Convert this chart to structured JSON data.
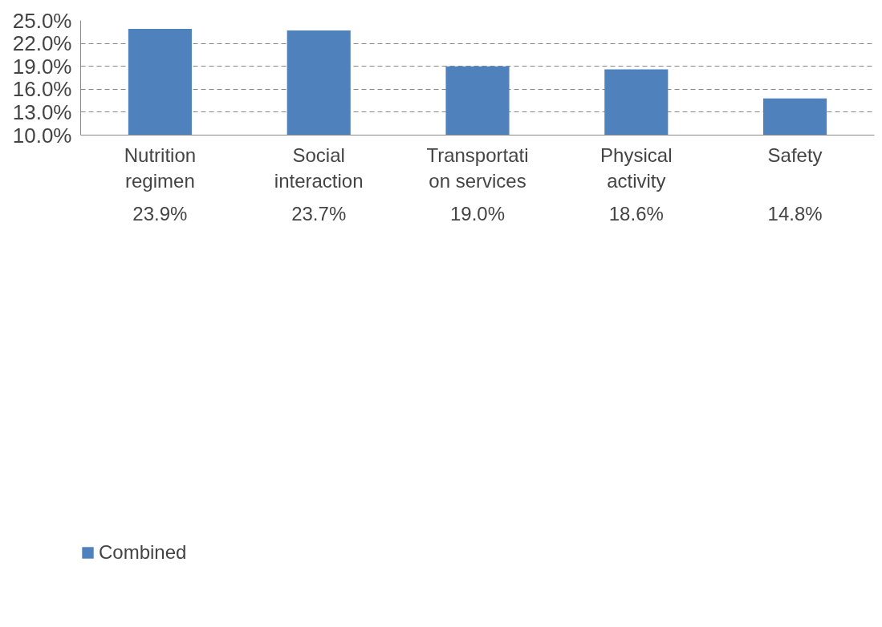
{
  "chart_data": {
    "type": "bar",
    "categories": [
      "Nutrition\nregimen",
      "Social\ninteraction",
      "Transportati\non services",
      "Physical\nactivity",
      "Safety"
    ],
    "series": [
      {
        "name": "Combined",
        "color": "#4f81bd",
        "values": [
          23.9,
          23.7,
          19.0,
          18.6,
          14.8
        ],
        "value_labels": [
          "23.9%",
          "23.7%",
          "19.0%",
          "18.6%",
          "14.8%"
        ]
      }
    ],
    "ylim": [
      10,
      25
    ],
    "yticks": [
      {
        "value": 10,
        "label": "10.0%"
      },
      {
        "value": 13,
        "label": "13.0%"
      },
      {
        "value": 16,
        "label": "16.0%"
      },
      {
        "value": 19,
        "label": "19.0%"
      },
      {
        "value": 22,
        "label": "22.0%"
      },
      {
        "value": 25,
        "label": "25.0%"
      }
    ],
    "grid": "y",
    "line_style": "dashed",
    "legend": "bottom left"
  }
}
